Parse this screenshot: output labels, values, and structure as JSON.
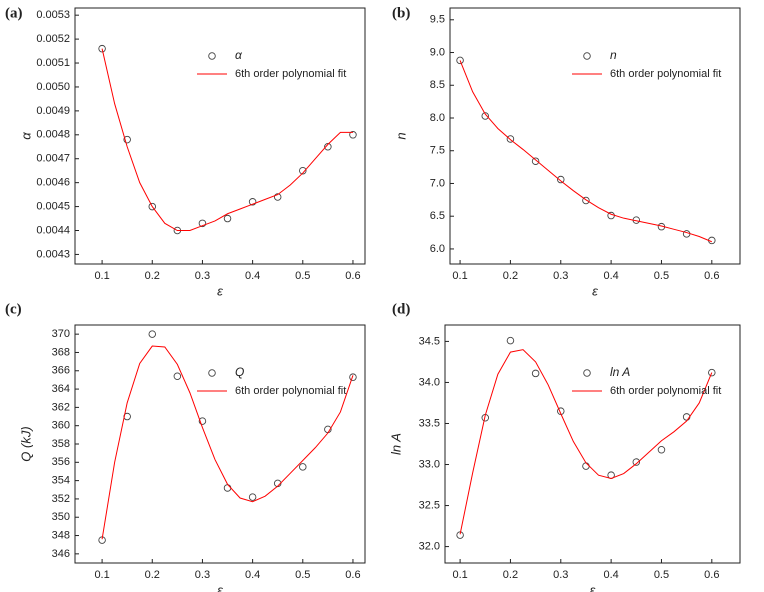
{
  "chart_data": [
    {
      "type": "scatter",
      "label": "(a)",
      "xlabel": "ε",
      "ylabel": "α",
      "legend": "upper right",
      "xlim": [
        0.046,
        0.624
      ],
      "ylim": [
        0.00426,
        0.00533
      ],
      "xticks": [
        0.1,
        0.2,
        0.3,
        0.4,
        0.5,
        0.6
      ],
      "yticks": [
        0.0043,
        0.0044,
        0.0045,
        0.0046,
        0.0047,
        0.0048,
        0.0049,
        {
          "value": 0.005,
          "label": "0.0050"
        },
        0.0051,
        0.0052,
        0.0053
      ],
      "series": [
        {
          "name": "α",
          "type": "scatter",
          "color": "#444444",
          "x": [
            0.1,
            0.15,
            0.2,
            0.25,
            0.3,
            0.35,
            0.4,
            0.45,
            0.5,
            0.55,
            0.6
          ],
          "values": [
            0.00516,
            0.00478,
            0.0045,
            0.0044,
            0.00443,
            0.00445,
            0.00452,
            0.00454,
            0.00465,
            0.00475,
            0.0048
          ]
        },
        {
          "name": "6th order polynomial fit",
          "type": "line",
          "color": "#ff0000",
          "x": [
            0.1,
            0.125,
            0.15,
            0.175,
            0.2,
            0.225,
            0.25,
            0.275,
            0.3,
            0.325,
            0.35,
            0.375,
            0.4,
            0.425,
            0.45,
            0.475,
            0.5,
            0.525,
            0.55,
            0.575,
            0.6
          ],
          "values": [
            0.00516,
            0.00493,
            0.00475,
            0.0046,
            0.0045,
            0.00443,
            0.0044,
            0.0044,
            0.00442,
            0.00444,
            0.00447,
            0.00449,
            0.00451,
            0.00453,
            0.00455,
            0.00459,
            0.00464,
            0.0047,
            0.00476,
            0.00481,
            0.00481
          ]
        }
      ]
    },
    {
      "type": "scatter",
      "label": "(b)",
      "xlabel": "ε",
      "ylabel": "n",
      "legend": "upper right",
      "xlim": [
        0.08,
        0.656
      ],
      "ylim": [
        5.77,
        9.68
      ],
      "xticks": [
        0.1,
        0.2,
        0.3,
        0.4,
        0.5,
        0.6
      ],
      "yticks": [
        {
          "value": 6,
          "label": "6.0"
        },
        6.5,
        {
          "value": 7,
          "label": "7.0"
        },
        7.5,
        {
          "value": 8,
          "label": "8.0"
        },
        8.5,
        {
          "value": 9,
          "label": "9.0"
        },
        9.5
      ],
      "series": [
        {
          "name": "n",
          "type": "scatter",
          "color": "#444444",
          "x": [
            0.1,
            0.15,
            0.2,
            0.25,
            0.3,
            0.35,
            0.4,
            0.45,
            0.5,
            0.55,
            0.6
          ],
          "values": [
            8.88,
            8.03,
            7.68,
            7.34,
            7.06,
            6.74,
            6.51,
            6.44,
            6.34,
            6.23,
            6.13
          ]
        },
        {
          "name": "6th order polynomial fit",
          "type": "line",
          "color": "#ff0000",
          "x": [
            0.1,
            0.125,
            0.15,
            0.175,
            0.2,
            0.225,
            0.25,
            0.275,
            0.3,
            0.325,
            0.35,
            0.375,
            0.4,
            0.425,
            0.45,
            0.475,
            0.5,
            0.525,
            0.55,
            0.575,
            0.6
          ],
          "values": [
            8.88,
            8.4,
            8.06,
            7.84,
            7.67,
            7.52,
            7.36,
            7.2,
            7.04,
            6.89,
            6.75,
            6.63,
            6.53,
            6.47,
            6.43,
            6.39,
            6.35,
            6.3,
            6.25,
            6.19,
            6.11
          ]
        }
      ]
    },
    {
      "type": "scatter",
      "label": "(c)",
      "xlabel": "ε",
      "ylabel": "Q (kJ)",
      "legend": "upper right",
      "xlim": [
        0.046,
        0.624
      ],
      "ylim": [
        345.0,
        371.0
      ],
      "xticks": [
        0.1,
        0.2,
        0.3,
        0.4,
        0.5,
        0.6
      ],
      "yticks": [
        346,
        348,
        350,
        352,
        354,
        356,
        358,
        360,
        362,
        364,
        366,
        368,
        370
      ],
      "series": [
        {
          "name": "Q",
          "type": "scatter",
          "color": "#444444",
          "x": [
            0.1,
            0.15,
            0.2,
            0.25,
            0.3,
            0.35,
            0.4,
            0.45,
            0.5,
            0.55,
            0.6
          ],
          "values": [
            347.5,
            361,
            370,
            365.4,
            360.5,
            353.2,
            352.2,
            353.7,
            355.5,
            359.6,
            365.3
          ]
        },
        {
          "name": "6th order polynomial fit",
          "type": "line",
          "color": "#ff0000",
          "x": [
            0.1,
            0.125,
            0.15,
            0.175,
            0.2,
            0.225,
            0.25,
            0.275,
            0.3,
            0.325,
            0.35,
            0.375,
            0.4,
            0.425,
            0.45,
            0.475,
            0.5,
            0.525,
            0.55,
            0.575,
            0.6
          ],
          "values": [
            347.6,
            356,
            362.5,
            366.8,
            368.7,
            368.6,
            366.7,
            363.6,
            359.8,
            356.3,
            353.6,
            352.1,
            351.7,
            352.3,
            353.4,
            354.8,
            356.2,
            357.6,
            359.2,
            361.5,
            365.5
          ]
        }
      ]
    },
    {
      "type": "scatter",
      "label": "(d)",
      "xlabel": "ε",
      "ylabel": "ln A",
      "legend": "upper right",
      "xlim": [
        0.07,
        0.656
      ],
      "ylim": [
        31.8,
        34.7
      ],
      "xticks": [
        0.1,
        0.2,
        0.3,
        0.4,
        0.5,
        0.6
      ],
      "yticks": [
        {
          "value": 32,
          "label": "32.0"
        },
        32.5,
        {
          "value": 33,
          "label": "33.0"
        },
        33.5,
        {
          "value": 34,
          "label": "34.0"
        },
        34.5
      ],
      "series": [
        {
          "name": "ln A",
          "type": "scatter",
          "color": "#444444",
          "x": [
            0.1,
            0.15,
            0.2,
            0.25,
            0.3,
            0.35,
            0.4,
            0.45,
            0.5,
            0.55,
            0.6
          ],
          "values": [
            32.14,
            33.57,
            34.51,
            34.11,
            33.65,
            32.98,
            32.87,
            33.03,
            33.18,
            33.58,
            34.12
          ]
        },
        {
          "name": "6th order polynomial fit",
          "type": "line",
          "color": "#ff0000",
          "x": [
            0.1,
            0.125,
            0.15,
            0.175,
            0.2,
            0.225,
            0.25,
            0.275,
            0.3,
            0.325,
            0.35,
            0.375,
            0.4,
            0.425,
            0.45,
            0.475,
            0.5,
            0.525,
            0.55,
            0.575,
            0.6
          ],
          "values": [
            32.15,
            32.9,
            33.6,
            34.1,
            34.37,
            34.4,
            34.25,
            33.97,
            33.62,
            33.28,
            33.02,
            32.87,
            32.83,
            32.89,
            33.01,
            33.15,
            33.29,
            33.4,
            33.53,
            33.75,
            34.12
          ]
        }
      ]
    }
  ]
}
